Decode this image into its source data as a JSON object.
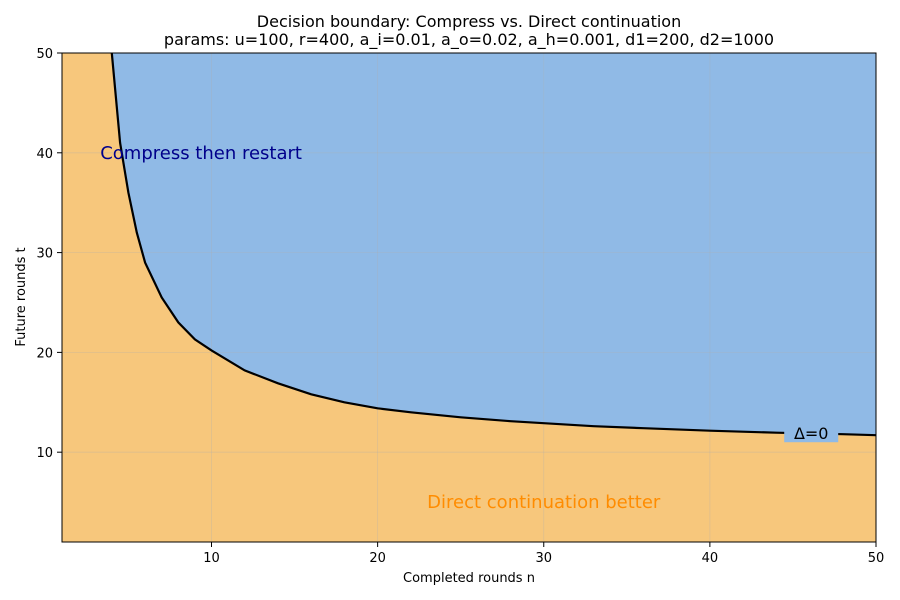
{
  "chart_data": {
    "type": "area",
    "title": "Decision boundary: Compress vs. Direct continuation",
    "subtitle": "params: u=100, r=400, a_i=0.01, a_o=0.02, a_h=0.001, d1=200, d2=1000",
    "xlabel": "Completed rounds n",
    "ylabel": "Future rounds t",
    "xlim": [
      1,
      50
    ],
    "ylim": [
      1,
      50
    ],
    "xticks": [
      10,
      20,
      30,
      40,
      50
    ],
    "yticks": [
      10,
      20,
      30,
      40,
      50
    ],
    "grid": true,
    "series": [
      {
        "name": "Δ=0",
        "x": [
          4.0,
          4.5,
          5,
          5.5,
          6,
          7,
          8,
          9,
          10,
          12,
          14,
          16,
          18,
          20,
          22,
          25,
          28,
          30,
          33,
          36,
          40,
          44,
          48,
          50
        ],
        "y": [
          50,
          41,
          36,
          32,
          29,
          25.5,
          23,
          21.3,
          20.2,
          18.2,
          16.9,
          15.8,
          15.0,
          14.4,
          14.0,
          13.5,
          13.1,
          12.9,
          12.6,
          12.4,
          12.15,
          11.95,
          11.8,
          11.7
        ]
      }
    ],
    "regions": [
      {
        "label": "Compress then restart",
        "position": "above",
        "fill": "#90bae6",
        "text_color": "#00008b",
        "label_x": 3.3,
        "label_y": 40
      },
      {
        "label": "Direct continuation better",
        "position": "below",
        "fill": "#f7c77c",
        "text_color": "#ff8c00",
        "label_x": 30,
        "label_y": 5
      }
    ],
    "contour_label": {
      "text": "Δ=0",
      "x": 46.1,
      "y": 11.9
    },
    "colors": {
      "boundary": "#000000",
      "grid": "#b0b0b0"
    }
  }
}
